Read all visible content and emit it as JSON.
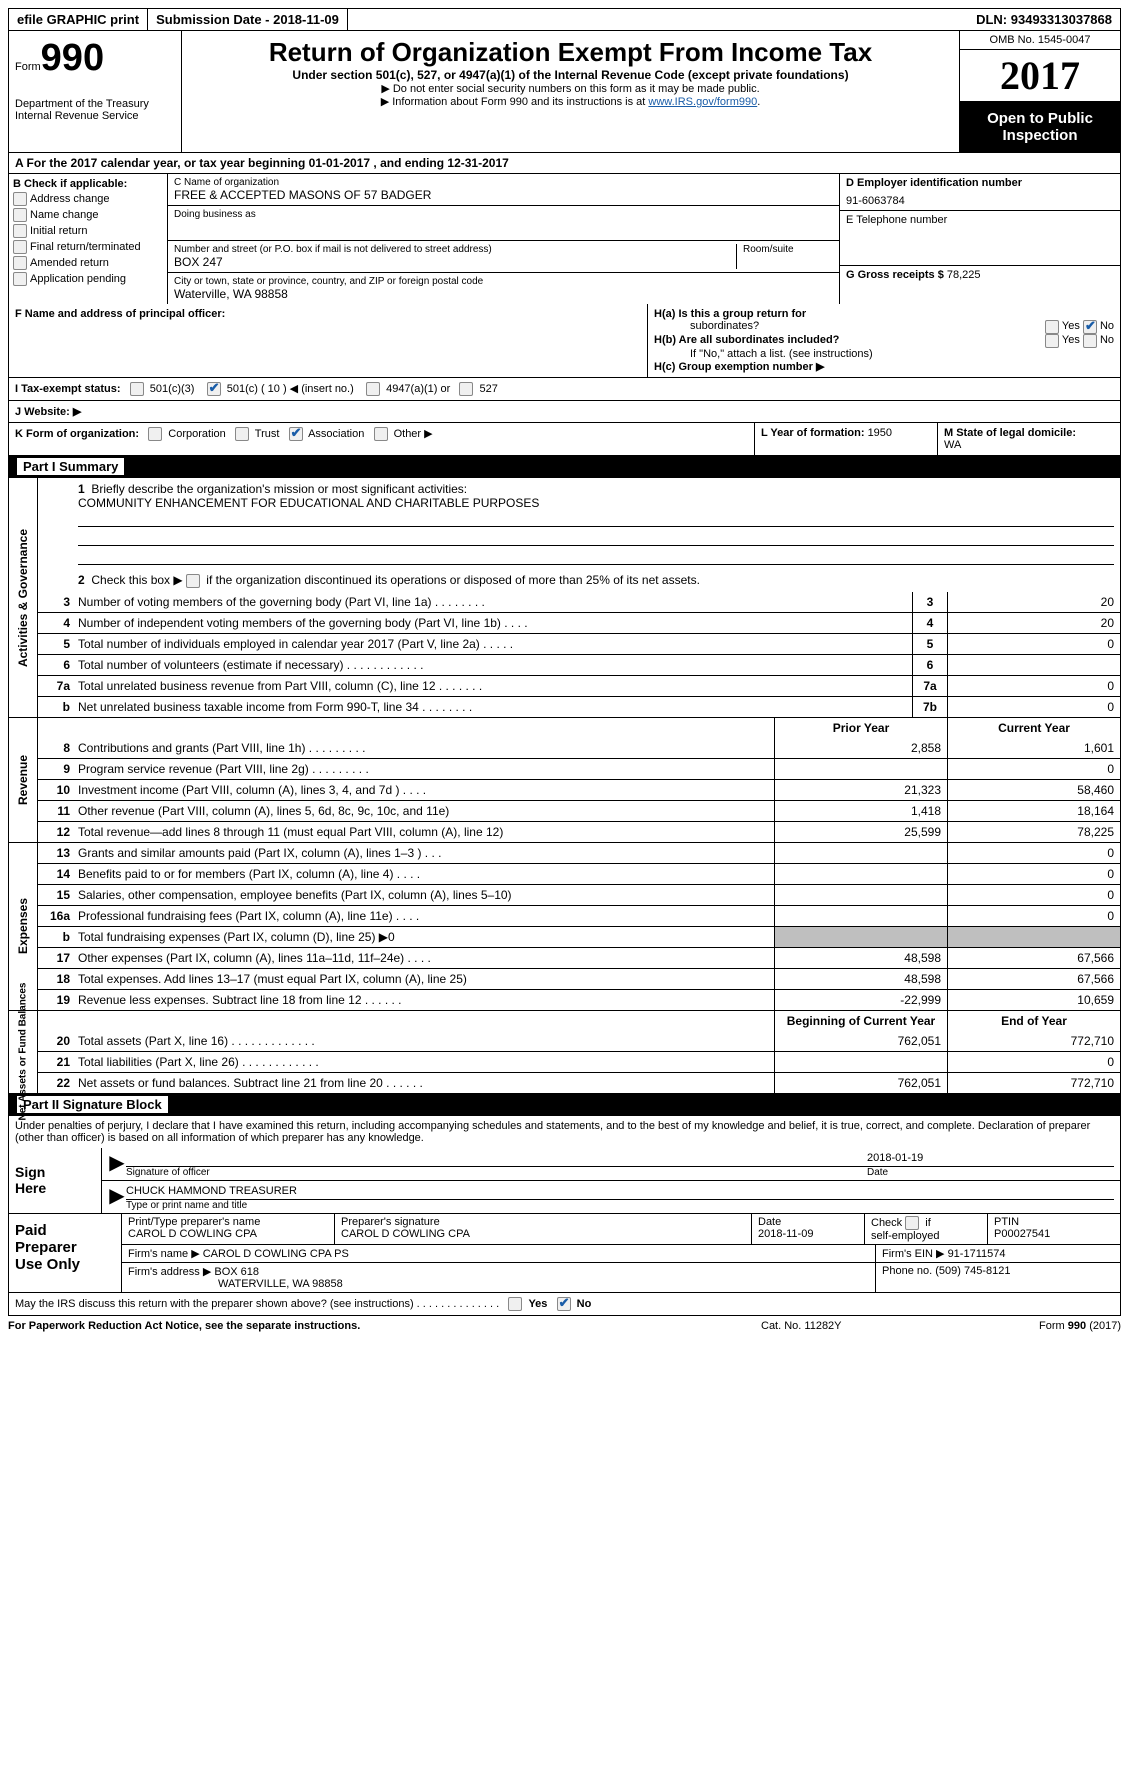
{
  "topbar": {
    "efile": "efile GRAPHIC print",
    "submission_label": "Submission Date - ",
    "submission_date": "2018-11-09",
    "dln_label": "DLN: ",
    "dln": "93493313037868"
  },
  "header": {
    "form_small": "Form",
    "form_big": "990",
    "dept1": "Department of the Treasury",
    "dept2": "Internal Revenue Service",
    "title": "Return of Organization Exempt From Income Tax",
    "sub": "Under section 501(c), 527, or 4947(a)(1) of the Internal Revenue Code (except private foundations)",
    "note1": "▶ Do not enter social security numbers on this form as it may be made public.",
    "note2_pre": "▶ Information about Form 990 and its instructions is at ",
    "note2_link": "www.IRS.gov/form990",
    "omb": "OMB No. 1545-0047",
    "year": "2017",
    "inspection1": "Open to Public",
    "inspection2": "Inspection"
  },
  "section_a": {
    "text_pre": "A  For the 2017 calendar year, or tax year beginning ",
    "begin": "01-01-2017",
    "mid": " , and ending ",
    "end": "12-31-2017"
  },
  "col_b": {
    "header": "B Check if applicable:",
    "items": [
      "Address change",
      "Name change",
      "Initial return",
      "Final return/terminated",
      "Amended return",
      "Application pending"
    ]
  },
  "col_c": {
    "name_label": "C Name of organization",
    "name": "FREE & ACCEPTED MASONS OF 57 BADGER",
    "dba_label": "Doing business as",
    "dba": "",
    "street_label": "Number and street (or P.O. box if mail is not delivered to street address)",
    "street": "BOX 247",
    "room_label": "Room/suite",
    "city_label": "City or town, state or province, country, and ZIP or foreign postal code",
    "city": "Waterville, WA  98858"
  },
  "col_d": {
    "ein_label": "D Employer identification number",
    "ein": "91-6063784",
    "phone_label": "E Telephone number",
    "phone": "",
    "gross_label": "G Gross receipts $ ",
    "gross": "78,225"
  },
  "row_f": {
    "f_label": "F Name and address of principal officer:",
    "ha": "H(a)  Is this a group return for",
    "ha2": "subordinates?",
    "hb": "H(b)  Are all subordinates included?",
    "hb2": "If \"No,\" attach a list. (see instructions)",
    "hc": "H(c)  Group exemption number ▶",
    "yes": "Yes",
    "no": "No"
  },
  "tax_exempt": {
    "label": "I  Tax-exempt status:",
    "c3": "501(c)(3)",
    "c": "501(c) ( 10 ) ◀ (insert no.)",
    "a1": "4947(a)(1) or",
    "s527": "527"
  },
  "website": {
    "label": "J  Website: ▶"
  },
  "row_k": {
    "k": "K Form of organization:",
    "corp": "Corporation",
    "trust": "Trust",
    "assoc": "Association",
    "other": "Other ▶",
    "l": "L Year of formation: ",
    "l_val": "1950",
    "m": "M State of legal domicile:",
    "m_val": "WA"
  },
  "part1_header": "Part I     Summary",
  "summary": {
    "q1": "1  Briefly describe the organization's mission or most significant activities:",
    "q1_val": "COMMUNITY ENHANCEMENT FOR EDUCATIONAL AND CHARITABLE PURPOSES",
    "q2": "2   Check this box ▶  if the organization discontinued its operations or disposed of more than 25% of its net assets."
  },
  "gov_rows": [
    {
      "n": "3",
      "d": "Number of voting members of the governing body (Part VI, line 1a)   .   .   .   .   .   .   .   .",
      "b": "3",
      "v": "20"
    },
    {
      "n": "4",
      "d": "Number of independent voting members of the governing body (Part VI, line 1b)    .   .   .   .",
      "b": "4",
      "v": "20"
    },
    {
      "n": "5",
      "d": "Total number of individuals employed in calendar year 2017 (Part V, line 2a)    .   .   .   .   .",
      "b": "5",
      "v": "0"
    },
    {
      "n": "6",
      "d": "Total number of volunteers (estimate if necessary)   .   .   .   .   .   .   .   .   .   .   .   .",
      "b": "6",
      "v": ""
    },
    {
      "n": "7a",
      "d": "Total unrelated business revenue from Part VIII, column (C), line 12   .   .   .   .   .   .   .",
      "b": "7a",
      "v": "0"
    },
    {
      "n": "b",
      "d": "Net unrelated business taxable income from Form 990-T, line 34   .   .   .   .   .   .   .   .",
      "b": "7b",
      "v": "0"
    }
  ],
  "col_headers": {
    "prior": "Prior Year",
    "current": "Current Year",
    "begin": "Beginning of Current Year",
    "end": "End of Year"
  },
  "rev_rows": [
    {
      "n": "8",
      "d": "Contributions and grants (Part VIII, line 1h)    .   .   .   .   .   .   .   .   .",
      "p": "2,858",
      "c": "1,601"
    },
    {
      "n": "9",
      "d": "Program service revenue (Part VIII, line 2g)   .   .   .   .   .   .   .   .   .",
      "p": "",
      "c": "0"
    },
    {
      "n": "10",
      "d": "Investment income (Part VIII, column (A), lines 3, 4, and 7d )    .   .   .   .",
      "p": "21,323",
      "c": "58,460"
    },
    {
      "n": "11",
      "d": "Other revenue (Part VIII, column (A), lines 5, 6d, 8c, 9c, 10c, and 11e)",
      "p": "1,418",
      "c": "18,164"
    },
    {
      "n": "12",
      "d": "Total revenue—add lines 8 through 11 (must equal Part VIII, column (A), line 12)",
      "p": "25,599",
      "c": "78,225"
    }
  ],
  "exp_rows": [
    {
      "n": "13",
      "d": "Grants and similar amounts paid (Part IX, column (A), lines 1–3 )   .   .   .",
      "p": "",
      "c": "0"
    },
    {
      "n": "14",
      "d": "Benefits paid to or for members (Part IX, column (A), line 4)   .   .   .   .",
      "p": "",
      "c": "0"
    },
    {
      "n": "15",
      "d": "Salaries, other compensation, employee benefits (Part IX, column (A), lines 5–10)",
      "p": "",
      "c": "0"
    },
    {
      "n": "16a",
      "d": "Professional fundraising fees (Part IX, column (A), line 11e)   .   .   .   .",
      "p": "",
      "c": "0"
    },
    {
      "n": "b",
      "d": "Total fundraising expenses (Part IX, column (D), line 25) ▶0",
      "p": "SHADE",
      "c": "SHADE"
    },
    {
      "n": "17",
      "d": "Other expenses (Part IX, column (A), lines 11a–11d, 11f–24e)    .   .   .   .",
      "p": "48,598",
      "c": "67,566"
    },
    {
      "n": "18",
      "d": "Total expenses. Add lines 13–17 (must equal Part IX, column (A), line 25)",
      "p": "48,598",
      "c": "67,566"
    },
    {
      "n": "19",
      "d": "Revenue less expenses. Subtract line 18 from line 12   .   .   .   .   .   .",
      "p": "-22,999",
      "c": "10,659"
    }
  ],
  "net_rows": [
    {
      "n": "20",
      "d": "Total assets (Part X, line 16)   .   .   .   .   .   .   .   .   .   .   .   .   .",
      "p": "762,051",
      "c": "772,710"
    },
    {
      "n": "21",
      "d": "Total liabilities (Part X, line 26)   .   .   .   .   .   .   .   .   .   .   .   .",
      "p": "",
      "c": "0"
    },
    {
      "n": "22",
      "d": "Net assets or fund balances. Subtract line 21 from line 20 .   .   .   .   .   .",
      "p": "762,051",
      "c": "772,710"
    }
  ],
  "vtabs": {
    "gov": "Activities & Governance",
    "rev": "Revenue",
    "exp": "Expenses",
    "net": "Net Assets or Fund Balances"
  },
  "part2_header": "Part II    Signature Block",
  "sig_text": "Under penalties of perjury, I declare that I have examined this return, including accompanying schedules and statements, and to the best of my knowledge and belief, it is true, correct, and complete. Declaration of preparer (other than officer) is based on all information of which preparer has any knowledge.",
  "sign": {
    "label": "Sign Here",
    "sig_lab": "Signature of officer",
    "date": "2018-01-19",
    "date_lab": "Date",
    "name": "CHUCK HAMMOND TREASURER",
    "name_lab": "Type or print name and title"
  },
  "prep": {
    "label": "Paid Preparer Use Only",
    "name_lab": "Print/Type preparer's name",
    "name": "CAROL D COWLING CPA",
    "sig_lab": "Preparer's signature",
    "sig": "CAROL D COWLING CPA",
    "date_lab": "Date",
    "date": "2018-11-09",
    "check_lab": "Check  if self-employed",
    "ptin_lab": "PTIN",
    "ptin": "P00027541",
    "firm_name_lab": "Firm's name      ▶ ",
    "firm_name": "CAROL D COWLING CPA PS",
    "firm_ein_lab": "Firm's EIN ▶ ",
    "firm_ein": "91-1711574",
    "firm_addr_lab": "Firm's address ▶ ",
    "firm_addr1": "BOX 618",
    "firm_addr2": "WATERVILLE, WA  98858",
    "phone_lab": "Phone no. ",
    "phone": "(509) 745-8121"
  },
  "discuss": {
    "text": "May the IRS discuss this return with the preparer shown above? (see instructions)    .   .   .   .   .   .   .   .   .   .   .   .   .   .",
    "yes": "Yes",
    "no": "No"
  },
  "footer": {
    "l": "For Paperwork Reduction Act Notice, see the separate instructions.",
    "m": "Cat. No. 11282Y",
    "r": "Form 990 (2017)"
  }
}
